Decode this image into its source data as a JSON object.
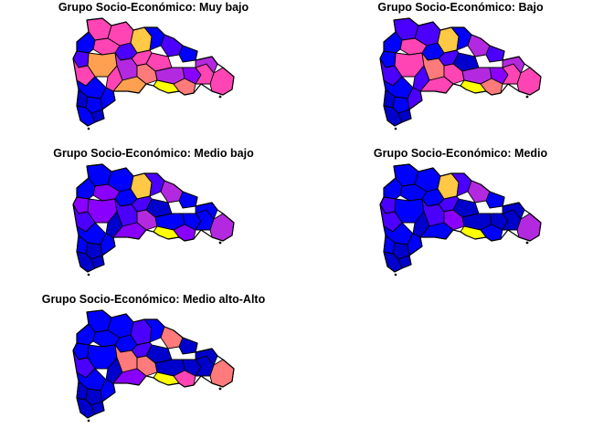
{
  "palette": {
    "c1": "#0000CD",
    "c2": "#0000FF",
    "c3": "#4B00FF",
    "c4": "#8A00FF",
    "c5": "#B329E0",
    "c6": "#FF44B4",
    "c7": "#FF7A7A",
    "c8": "#FFA050",
    "c9": "#FFC845",
    "c10": "#FFFF00"
  },
  "panels": [
    {
      "title": "Grupo Socio-Económico: Muy bajo",
      "colors": [
        "c6",
        "c6",
        "c9",
        "c2",
        "c3",
        "c2",
        "c6",
        "c6",
        "c3",
        "c6",
        "c8",
        "c5",
        "c7",
        "c5",
        "c4",
        "c10",
        "c7",
        "c6",
        "c5",
        "c6",
        "c2",
        "c3",
        "c6",
        "c6",
        "c8",
        "c2",
        "c1",
        "c2",
        "c2",
        "c2",
        "c1"
      ]
    },
    {
      "title": "Grupo Socio-Económico: Bajo",
      "colors": [
        "c3",
        "c3",
        "c9",
        "c2",
        "c5",
        "c3",
        "c1",
        "c3",
        "c2",
        "c6",
        "c6",
        "c7",
        "c6",
        "c5",
        "c4",
        "c10",
        "c7",
        "c6",
        "c5",
        "c6",
        "c2",
        "c2",
        "c3",
        "c3",
        "c6",
        "c2",
        "c1",
        "c2",
        "c3",
        "c1",
        "c1"
      ]
    },
    {
      "title": "Grupo Socio-Económico: Medio bajo",
      "colors": [
        "c2",
        "c2",
        "c9",
        "c3",
        "c5",
        "c2",
        "c1",
        "c3",
        "c2",
        "c4",
        "c4",
        "c3",
        "c5",
        "c2",
        "c2",
        "c10",
        "c4",
        "c2",
        "c2",
        "c5",
        "c2",
        "c4",
        "c3",
        "c1",
        "c4",
        "c2",
        "c2",
        "c1",
        "c2",
        "c1",
        "c1"
      ]
    },
    {
      "title": "Grupo Socio-Económico: Medio",
      "colors": [
        "c2",
        "c2",
        "c9",
        "c3",
        "c5",
        "c2",
        "c1",
        "c3",
        "c2",
        "c2",
        "c2",
        "c3",
        "c4",
        "c1",
        "c1",
        "c10",
        "c2",
        "c1",
        "c1",
        "c5",
        "c2",
        "c3",
        "c3",
        "c1",
        "c2",
        "c2",
        "c2",
        "c1",
        "c2",
        "c1",
        "c1"
      ]
    },
    {
      "title": "Grupo Socio-Económico: Medio alto-Alto",
      "colors": [
        "c2",
        "c2",
        "c3",
        "c2",
        "c7",
        "c1",
        "c1",
        "c3",
        "c2",
        "c2",
        "c2",
        "c7",
        "c7",
        "c1",
        "c1",
        "c10",
        "c6",
        "c1",
        "c1",
        "c7",
        "c2",
        "c2",
        "c3",
        "c1",
        "c4",
        "c2",
        "c1",
        "c1",
        "c2",
        "c1",
        "c1"
      ]
    }
  ]
}
